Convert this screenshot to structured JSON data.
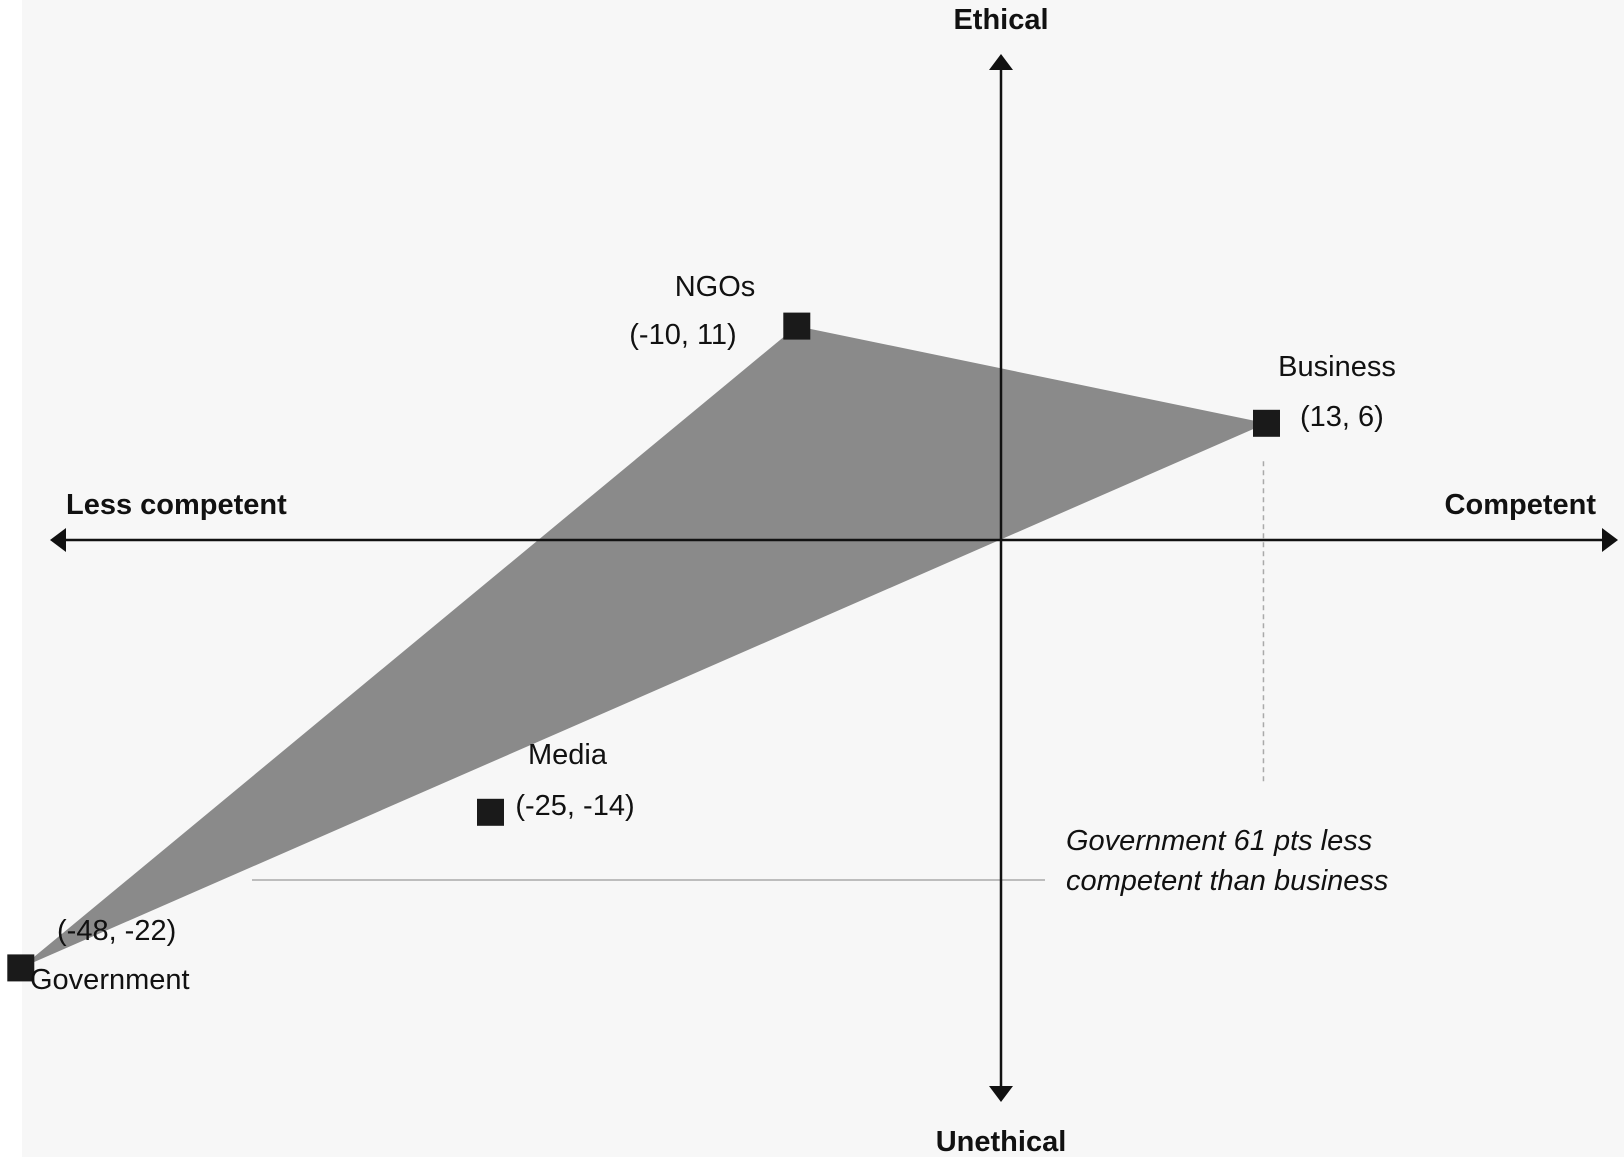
{
  "chart_data": {
    "type": "scatter",
    "x_axis": {
      "positive_label": "Competent",
      "negative_label": "Less competent"
    },
    "y_axis": {
      "positive_label": "Ethical",
      "negative_label": "Unethical"
    },
    "points": [
      {
        "name": "NGOs",
        "x": -10,
        "y": 11,
        "coord_label": "(-10, 11)"
      },
      {
        "name": "Business",
        "x": 13,
        "y": 6,
        "coord_label": "(13, 6)"
      },
      {
        "name": "Media",
        "x": -25,
        "y": -14,
        "coord_label": "(-25, -14)"
      },
      {
        "name": "Government",
        "x": -48,
        "y": -22,
        "coord_label": "(-48, -22)"
      }
    ],
    "highlight_triangle": [
      "NGOs",
      "Business",
      "Government"
    ],
    "annotation": {
      "lines": [
        "Government 61 pts less",
        "competent than business"
      ]
    },
    "colors": {
      "background": "#f7f7f7",
      "triangle_fill": "#8a8a8a",
      "marker": "#1a1a1a",
      "axis": "#111111",
      "reference_line": "#aaaaaa"
    }
  }
}
